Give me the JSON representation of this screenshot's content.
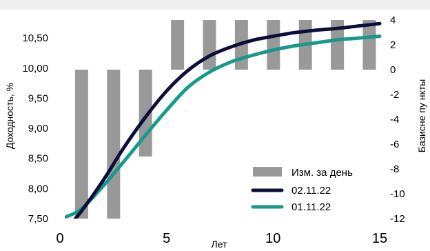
{
  "chart_data": {
    "type": "bar+line",
    "title": "",
    "xlabel": "Лет",
    "ylabel_left": "Доходность, %",
    "ylabel_right": "Базисне пу нкты",
    "x_ticks": [
      "0",
      "5",
      "10",
      "15"
    ],
    "xlim": [
      0,
      15
    ],
    "y_left_ticks": [
      "7,50",
      "8,00",
      "8,50",
      "9,00",
      "9,50",
      "10,00",
      "10,50"
    ],
    "ylim_left": [
      7.5,
      10.8
    ],
    "y_right_ticks": [
      "-12",
      "-10",
      "-8",
      "-6",
      "-4",
      "-2",
      "0",
      "2",
      "4"
    ],
    "ylim_right": [
      -12,
      4
    ],
    "grid": false,
    "legend_position": "bottom-right",
    "legend": [
      "Изм. за день",
      "02.11.22",
      "01.11.22"
    ],
    "bars": {
      "name": "Изм. за день",
      "axis": "right",
      "color": "#999999",
      "x": [
        1,
        2.5,
        4,
        5.5,
        7,
        8.5,
        10,
        11.5,
        13,
        14.5
      ],
      "values": [
        -12,
        -12,
        -7,
        4,
        4,
        4,
        4,
        4,
        4,
        4
      ]
    },
    "series": [
      {
        "name": "02.11.22",
        "axis": "left",
        "color": "#0d0d3a",
        "x": [
          0.6,
          1,
          2,
          3,
          4,
          5,
          6,
          7,
          8,
          9,
          10,
          11,
          12,
          13,
          14,
          15
        ],
        "values": [
          7.45,
          7.62,
          8.12,
          8.68,
          9.18,
          9.62,
          9.96,
          10.2,
          10.35,
          10.46,
          10.53,
          10.59,
          10.63,
          10.66,
          10.7,
          10.74
        ]
      },
      {
        "name": "01.11.22",
        "axis": "left",
        "color": "#159a8c",
        "x": [
          0.3,
          1,
          2,
          3,
          4,
          5,
          6,
          7,
          8,
          9,
          10,
          11,
          12,
          13,
          14,
          15
        ],
        "values": [
          7.53,
          7.66,
          8.03,
          8.45,
          8.88,
          9.3,
          9.68,
          9.93,
          10.1,
          10.21,
          10.3,
          10.37,
          10.42,
          10.47,
          10.5,
          10.53
        ]
      }
    ]
  }
}
